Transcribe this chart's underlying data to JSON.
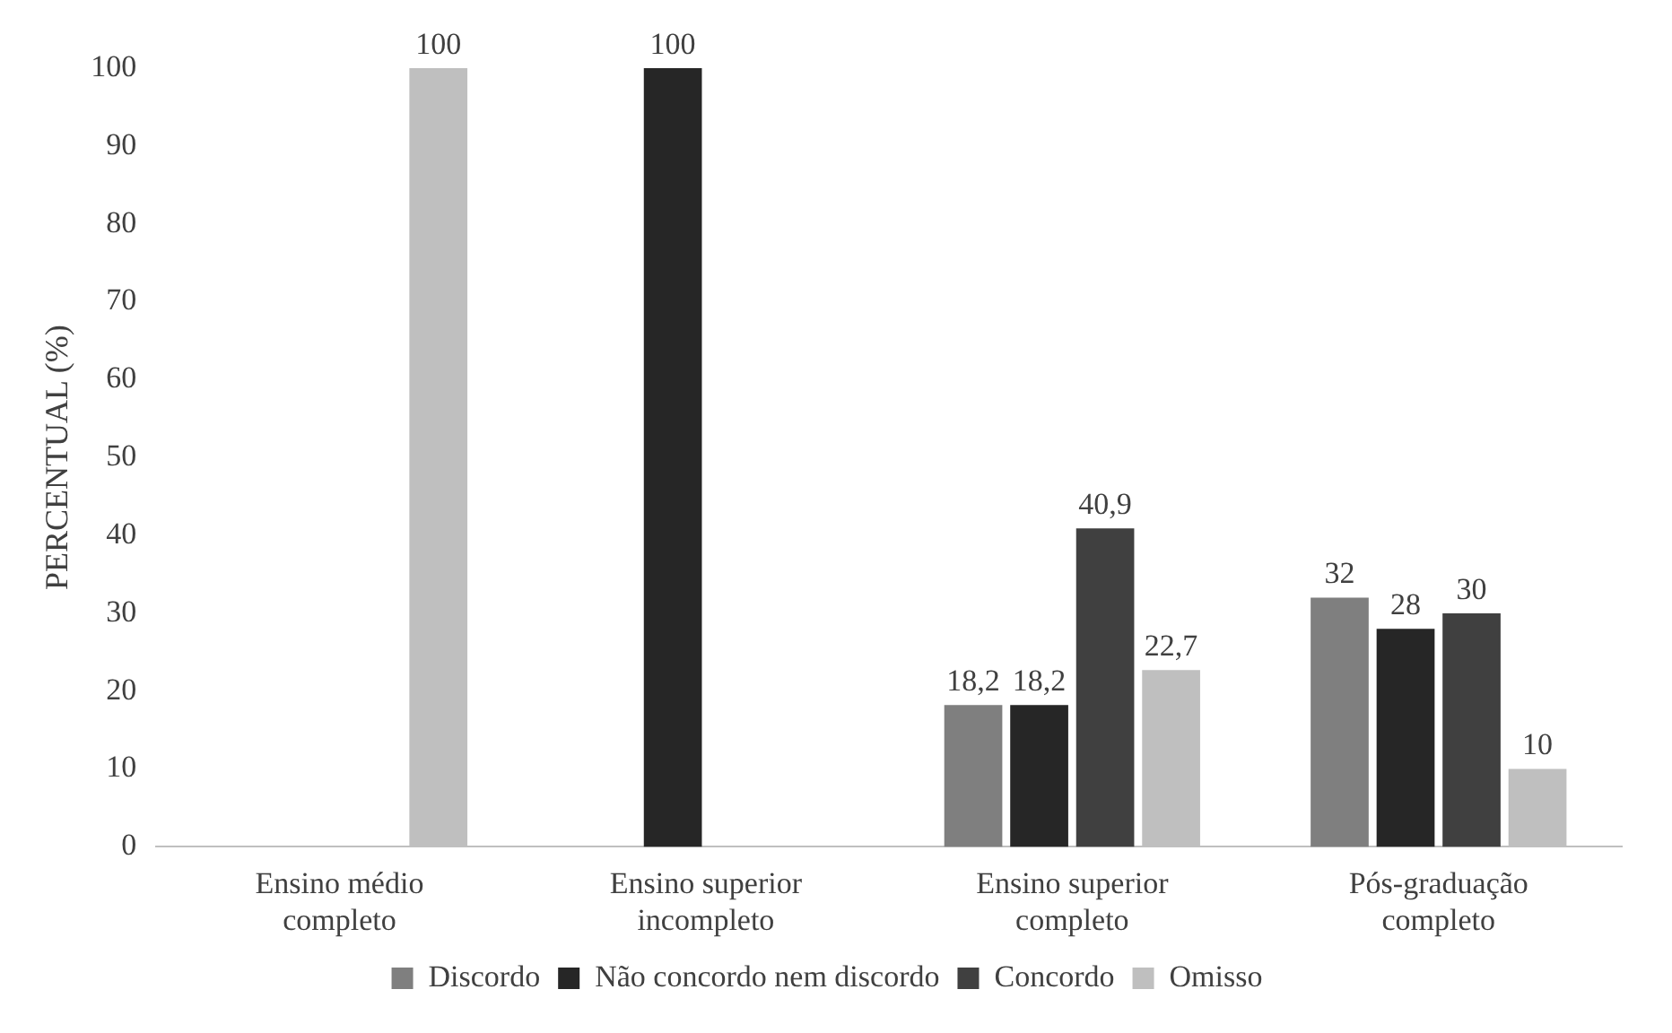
{
  "chart_data": {
    "type": "bar",
    "ylabel": "PERCENTUAL (%)",
    "categories": [
      "Ensino médio completo",
      "Ensino superior incompleto",
      "Ensino superior completo",
      "Pós-graduação completo"
    ],
    "series": [
      {
        "name": "Discordo",
        "color": "#7f7f7f",
        "values": [
          null,
          null,
          18.2,
          32
        ],
        "value_labels": [
          null,
          null,
          "18,2",
          "32"
        ]
      },
      {
        "name": "Não concordo nem discordo",
        "color": "#262626",
        "values": [
          null,
          100,
          18.2,
          28
        ],
        "value_labels": [
          null,
          "100",
          "18,2",
          "28"
        ]
      },
      {
        "name": "Concordo",
        "color": "#404040",
        "values": [
          null,
          null,
          40.9,
          30
        ],
        "value_labels": [
          null,
          null,
          "40,9",
          "30"
        ]
      },
      {
        "name": "Omisso",
        "color": "#bfbfbf",
        "values": [
          100,
          null,
          22.7,
          10
        ],
        "value_labels": [
          "100",
          null,
          "22,7",
          "10"
        ]
      }
    ],
    "ylim": [
      0,
      100
    ],
    "yticks": [
      0,
      10,
      20,
      30,
      40,
      50,
      60,
      70,
      80,
      90,
      100
    ],
    "grid": false,
    "legend": "bottom"
  }
}
